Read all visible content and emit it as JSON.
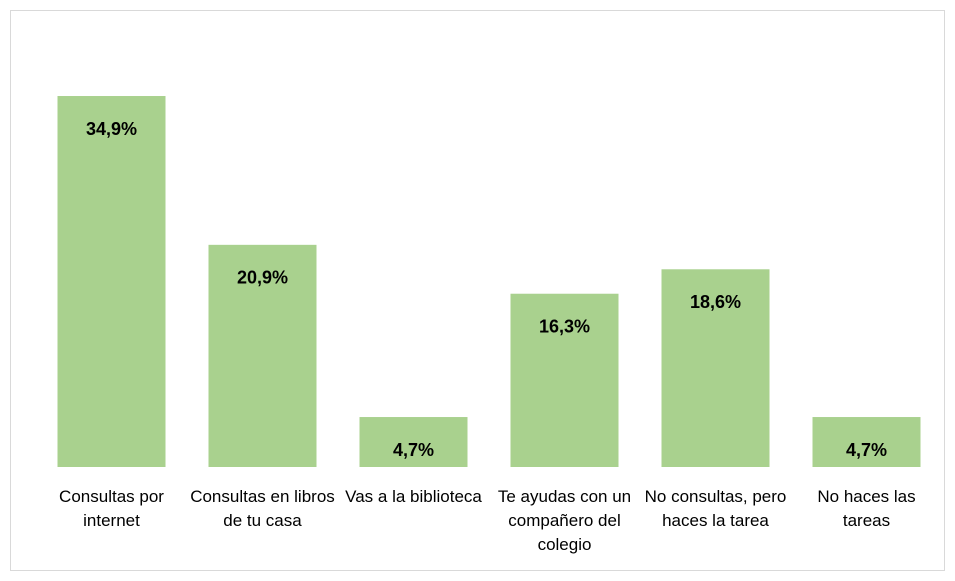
{
  "chart_data": {
    "type": "bar",
    "categories": [
      "Consultas por internet",
      "Consultas en libros de tu casa",
      "Vas a la biblioteca",
      "Te ayudas con un compañero del colegio",
      "No consultas, pero haces la tarea",
      "No haces las tareas"
    ],
    "values": [
      34.9,
      20.9,
      4.7,
      16.3,
      18.6,
      4.7
    ],
    "value_labels": [
      "34,9%",
      "20,9%",
      "4,7%",
      "16,3%",
      "18,6%",
      "4,7%"
    ],
    "color": "#a9d18e"
  }
}
